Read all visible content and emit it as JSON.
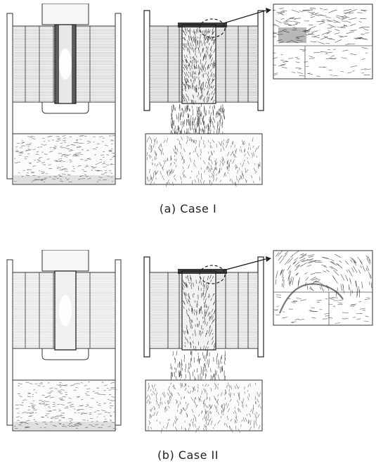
{
  "figure": {
    "captions": [
      "(a)  Case I",
      "(b)  Case II"
    ],
    "colors": {
      "background": "#ffffff",
      "line": "#333333",
      "dense": "#1a1a1a",
      "arrow": "#444444"
    }
  }
}
